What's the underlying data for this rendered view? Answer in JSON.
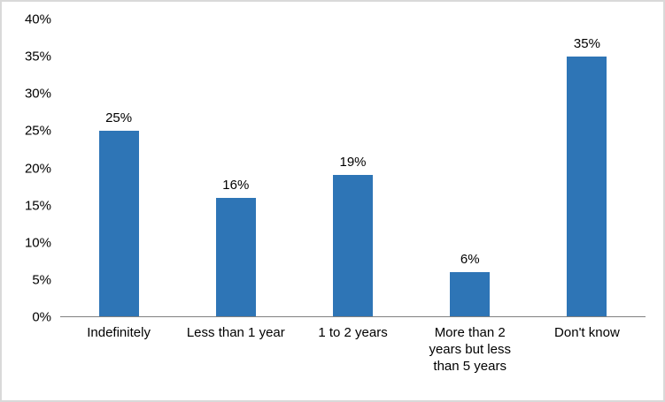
{
  "chart_data": {
    "type": "bar",
    "title": "",
    "xlabel": "",
    "ylabel": "",
    "categories": [
      "Indefinitely",
      "Less than 1 year",
      "1 to 2 years",
      "More than 2 years but less than 5 years",
      "Don't know"
    ],
    "values": [
      25,
      16,
      19,
      6,
      35
    ],
    "data_labels": [
      "25%",
      "16%",
      "19%",
      "6%",
      "35%"
    ],
    "ylim": [
      0,
      40
    ],
    "ytick_step": 5,
    "ytick_labels": [
      "0%",
      "5%",
      "10%",
      "15%",
      "20%",
      "25%",
      "30%",
      "35%",
      "40%"
    ],
    "bar_color": "#2E75B6",
    "axis_line_color": "#808080",
    "grid": false,
    "legend_position": "none"
  }
}
